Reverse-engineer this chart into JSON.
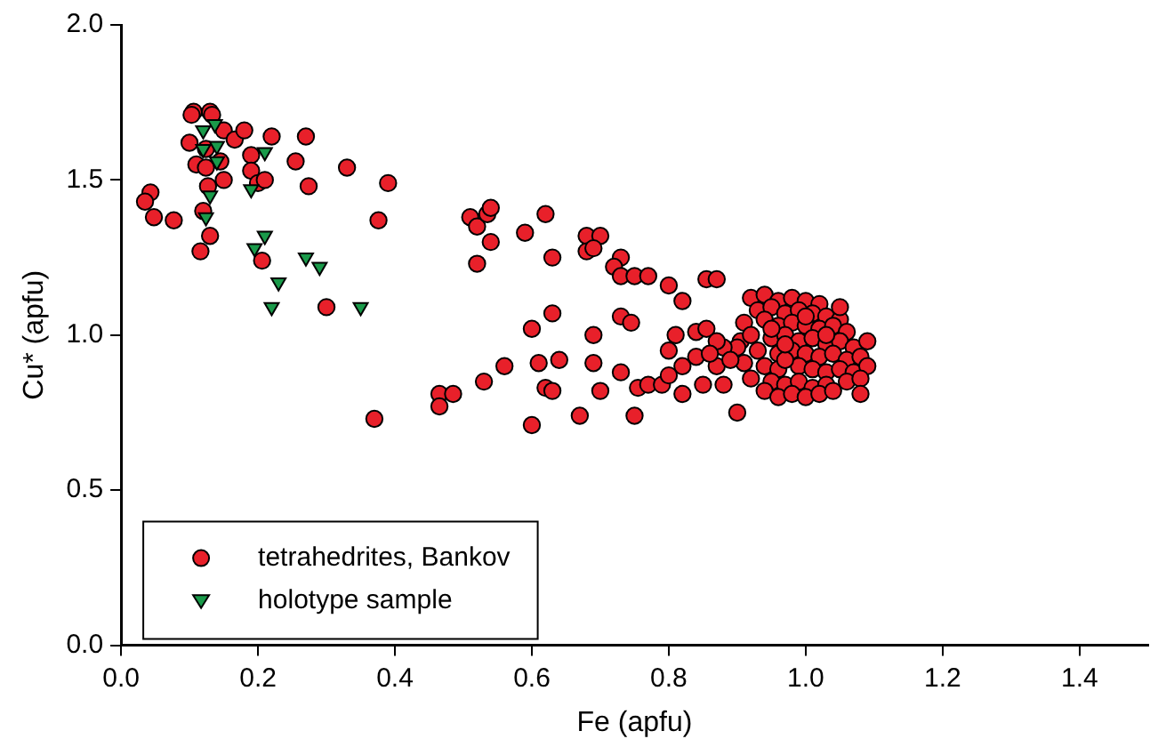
{
  "chart_data": {
    "type": "scatter",
    "xlabel": "Fe (apfu)",
    "ylabel": "Cu* (apfu)",
    "xlim": [
      0,
      1.5
    ],
    "ylim": [
      0,
      2.0
    ],
    "xticks": [
      {
        "value": 0,
        "label": "0.0"
      },
      0.2,
      0.4,
      0.6,
      0.8,
      {
        "value": 1,
        "label": "1.0"
      },
      1.2,
      1.4
    ],
    "yticks": [
      {
        "value": 0,
        "label": "0.0"
      },
      0.5,
      {
        "value": 1,
        "label": "1.0"
      },
      1.5,
      {
        "value": 2,
        "label": "2.0"
      }
    ],
    "grid": false,
    "legend": "bottom left",
    "series": [
      {
        "name": "tetrahedrites, Bankov",
        "color": "#e8202a",
        "marker": "circle",
        "x": [
          0.106,
          0.13,
          0.133,
          0.103,
          0.15,
          0.166,
          0.18,
          0.22,
          0.27,
          0.1,
          0.124,
          0.145,
          0.11,
          0.124,
          0.19,
          0.19,
          0.2,
          0.21,
          0.15,
          0.127,
          0.255,
          0.274,
          0.33,
          0.39,
          0.043,
          0.035,
          0.048,
          0.077,
          0.376,
          0.12,
          0.13,
          0.116,
          0.206,
          0.3,
          0.51,
          0.52,
          0.535,
          0.54,
          0.54,
          0.59,
          0.62,
          0.52,
          0.63,
          0.68,
          0.7,
          0.68,
          0.69,
          0.73,
          0.72,
          0.73,
          0.75,
          0.77,
          0.8,
          0.82,
          0.855,
          0.87,
          0.63,
          0.6,
          0.69,
          0.73,
          0.745,
          0.56,
          0.61,
          0.64,
          0.69,
          0.73,
          0.53,
          0.62,
          0.63,
          0.7,
          0.755,
          0.77,
          0.79,
          0.82,
          0.465,
          0.485,
          0.465,
          0.6,
          0.67,
          0.75,
          0.9,
          0.37,
          0.81,
          0.8,
          0.84,
          0.855,
          0.82,
          0.8,
          0.85,
          0.88,
          0.84,
          0.87,
          0.905,
          0.92,
          0.94,
          0.96,
          0.98,
          1.0,
          1.02,
          0.93,
          0.95,
          0.97,
          0.99,
          1.01,
          1.03,
          1.05,
          0.91,
          0.94,
          0.96,
          0.98,
          1.0,
          1.02,
          1.04,
          1.06,
          0.92,
          0.95,
          0.97,
          0.99,
          1.01,
          1.03,
          1.05,
          1.07,
          0.9,
          0.93,
          0.96,
          0.98,
          1.0,
          1.02,
          1.04,
          1.06,
          1.08,
          0.91,
          0.94,
          0.96,
          0.99,
          1.01,
          1.03,
          1.05,
          1.07,
          1.09,
          0.92,
          0.95,
          0.97,
          0.99,
          1.01,
          1.03,
          1.06,
          1.08,
          0.94,
          0.96,
          0.98,
          1.0,
          1.02,
          1.04,
          0.97,
          1.0,
          0.95,
          1.03,
          0.97,
          1.05,
          1.09,
          1.08,
          0.88,
          0.89,
          0.87,
          0.86
        ],
        "values": [
          1.72,
          1.72,
          1.71,
          1.71,
          1.66,
          1.63,
          1.66,
          1.64,
          1.64,
          1.62,
          1.6,
          1.56,
          1.55,
          1.54,
          1.58,
          1.53,
          1.49,
          1.5,
          1.5,
          1.48,
          1.56,
          1.48,
          1.54,
          1.49,
          1.46,
          1.43,
          1.38,
          1.37,
          1.37,
          1.4,
          1.32,
          1.27,
          1.24,
          1.09,
          1.38,
          1.35,
          1.39,
          1.41,
          1.3,
          1.33,
          1.39,
          1.23,
          1.25,
          1.32,
          1.32,
          1.27,
          1.28,
          1.25,
          1.22,
          1.19,
          1.19,
          1.19,
          1.16,
          1.11,
          1.18,
          1.18,
          1.07,
          1.02,
          1.0,
          1.06,
          1.04,
          0.9,
          0.91,
          0.92,
          0.91,
          0.88,
          0.85,
          0.83,
          0.82,
          0.82,
          0.83,
          0.84,
          0.84,
          0.81,
          0.81,
          0.81,
          0.77,
          0.71,
          0.74,
          0.74,
          0.75,
          0.73,
          1.0,
          0.95,
          1.01,
          1.02,
          0.9,
          0.87,
          0.84,
          0.84,
          0.93,
          0.9,
          0.98,
          1.12,
          1.13,
          1.11,
          1.12,
          1.11,
          1.1,
          1.08,
          1.09,
          1.07,
          1.08,
          1.07,
          1.06,
          1.05,
          1.04,
          1.05,
          1.03,
          1.04,
          1.03,
          1.02,
          1.03,
          1.01,
          1.0,
          0.99,
          1.0,
          0.98,
          0.99,
          0.97,
          0.98,
          0.96,
          0.96,
          0.95,
          0.94,
          0.95,
          0.94,
          0.93,
          0.94,
          0.92,
          0.93,
          0.91,
          0.9,
          0.89,
          0.9,
          0.89,
          0.88,
          0.89,
          0.88,
          0.9,
          0.86,
          0.85,
          0.84,
          0.85,
          0.83,
          0.84,
          0.85,
          0.86,
          0.82,
          0.8,
          0.81,
          0.8,
          0.81,
          0.82,
          0.92,
          1.06,
          1.02,
          1.0,
          0.97,
          1.09,
          0.98,
          0.81,
          0.96,
          0.92,
          0.98,
          0.94
        ]
      },
      {
        "name": "holotype sample",
        "color": "#1a9a4a",
        "marker": "triangle",
        "x": [
          0.137,
          0.12,
          0.12,
          0.14,
          0.14,
          0.21,
          0.19,
          0.13,
          0.124,
          0.21,
          0.195,
          0.27,
          0.29,
          0.23,
          0.22,
          0.35
        ],
        "values": [
          1.68,
          1.66,
          1.6,
          1.61,
          1.56,
          1.59,
          1.47,
          1.45,
          1.38,
          1.32,
          1.28,
          1.25,
          1.22,
          1.17,
          1.09,
          1.09
        ]
      }
    ]
  }
}
